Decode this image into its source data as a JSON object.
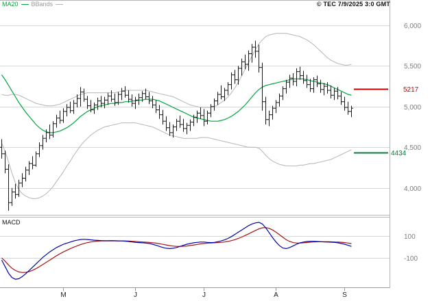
{
  "header": {
    "legend": {
      "ma20_label": "MA20",
      "bbands_label": "BBands"
    },
    "copyright": "© TEC 7/9/2025 3:0 GMT"
  },
  "colors": {
    "background": "#ffffff",
    "grid": "#d6d6d6",
    "frame": "#b5b5b5",
    "axis_line": "#999999",
    "bar": "#151515",
    "ma20": "#00a53c",
    "bbands": "#b4b4b4",
    "macd_line": "#0000b0",
    "macd_signal": "#aa1111",
    "tick_label": "#7d7d7d",
    "month_label": "#1a1a1a",
    "level_resistance": "#c00000",
    "level_support": "#008040"
  },
  "chart_data": {
    "type": "ohlc-bar",
    "title": "",
    "panels": [
      "price",
      "macd"
    ],
    "price_axis": {
      "ylim": [
        3670,
        6310
      ],
      "ticks": [
        {
          "value": 6000,
          "label": "6,000"
        },
        {
          "value": 5500,
          "label": "5,500"
        },
        {
          "value": 5000,
          "label": "5,000"
        },
        {
          "value": 4500,
          "label": "4,500"
        },
        {
          "value": 4000,
          "label": "4,000"
        }
      ]
    },
    "levels": [
      {
        "value": 5217,
        "label": "5217",
        "color": "#c00000",
        "role": "resistance"
      },
      {
        "value": 4434,
        "label": "4434",
        "color": "#008040",
        "role": "support"
      }
    ],
    "x_axis": {
      "months": [
        {
          "label": "M",
          "index": 18
        },
        {
          "label": "J",
          "index": 39
        },
        {
          "label": "J",
          "index": 59
        },
        {
          "label": "A",
          "index": 80
        },
        {
          "label": "S",
          "index": 100
        }
      ]
    },
    "series": {
      "ohlc": [
        [
          4500,
          4600,
          4360,
          4420
        ],
        [
          4420,
          4460,
          4180,
          4230
        ],
        [
          4230,
          4290,
          3720,
          3820
        ],
        [
          3820,
          4000,
          3780,
          3950
        ],
        [
          3950,
          4050,
          3870,
          3920
        ],
        [
          3920,
          4100,
          3890,
          4060
        ],
        [
          4060,
          4180,
          4010,
          4120
        ],
        [
          4120,
          4260,
          4080,
          4220
        ],
        [
          4220,
          4330,
          4160,
          4300
        ],
        [
          4300,
          4390,
          4230,
          4280
        ],
        [
          4280,
          4450,
          4260,
          4420
        ],
        [
          4420,
          4560,
          4380,
          4520
        ],
        [
          4520,
          4650,
          4470,
          4610
        ],
        [
          4610,
          4720,
          4560,
          4680
        ],
        [
          4680,
          4780,
          4600,
          4650
        ],
        [
          4650,
          4820,
          4620,
          4790
        ],
        [
          4790,
          4900,
          4740,
          4860
        ],
        [
          4860,
          4950,
          4790,
          4830
        ],
        [
          4830,
          4980,
          4800,
          4940
        ],
        [
          4940,
          5030,
          4880,
          4990
        ],
        [
          4990,
          5060,
          4920,
          4950
        ],
        [
          4950,
          5080,
          4910,
          5040
        ],
        [
          5040,
          5150,
          4990,
          5100
        ],
        [
          5100,
          5240,
          5000,
          5180
        ],
        [
          5180,
          5220,
          5060,
          5090
        ],
        [
          5090,
          5130,
          4970,
          5010
        ],
        [
          5010,
          5080,
          4930,
          4960
        ],
        [
          4960,
          5050,
          4910,
          5020
        ],
        [
          5020,
          5110,
          4960,
          5070
        ],
        [
          5070,
          5130,
          4990,
          5040
        ],
        [
          5040,
          5120,
          4980,
          5080
        ],
        [
          5080,
          5170,
          5020,
          5130
        ],
        [
          5130,
          5200,
          5060,
          5090
        ],
        [
          5090,
          5160,
          5010,
          5050
        ],
        [
          5050,
          5180,
          5020,
          5150
        ],
        [
          5150,
          5230,
          5080,
          5190
        ],
        [
          5190,
          5250,
          5110,
          5140
        ],
        [
          5140,
          5200,
          5050,
          5090
        ],
        [
          5090,
          5150,
          5000,
          5040
        ],
        [
          5040,
          5120,
          4970,
          5080
        ],
        [
          5080,
          5160,
          5020,
          5110
        ],
        [
          5110,
          5190,
          5060,
          5160
        ],
        [
          5160,
          5220,
          5090,
          5120
        ],
        [
          5120,
          5180,
          5030,
          5070
        ],
        [
          5070,
          5130,
          4980,
          5020
        ],
        [
          5020,
          5080,
          4920,
          4960
        ],
        [
          4960,
          5020,
          4850,
          4900
        ],
        [
          4900,
          4960,
          4780,
          4820
        ],
        [
          4820,
          4880,
          4700,
          4740
        ],
        [
          4740,
          4810,
          4640,
          4680
        ],
        [
          4680,
          4780,
          4620,
          4750
        ],
        [
          4750,
          4850,
          4700,
          4820
        ],
        [
          4820,
          4890,
          4740,
          4780
        ],
        [
          4780,
          4850,
          4690,
          4730
        ],
        [
          4730,
          4800,
          4660,
          4770
        ],
        [
          4770,
          4840,
          4700,
          4810
        ],
        [
          4810,
          4900,
          4760,
          4870
        ],
        [
          4870,
          4950,
          4800,
          4920
        ],
        [
          4920,
          4990,
          4850,
          4890
        ],
        [
          4890,
          4970,
          4760,
          4820
        ],
        [
          4820,
          4950,
          4780,
          4920
        ],
        [
          4920,
          5030,
          4870,
          5000
        ],
        [
          5000,
          5100,
          4950,
          5070
        ],
        [
          5070,
          5180,
          5020,
          5150
        ],
        [
          5150,
          5260,
          5090,
          5120
        ],
        [
          5120,
          5230,
          5070,
          5200
        ],
        [
          5200,
          5300,
          5140,
          5270
        ],
        [
          5270,
          5420,
          5210,
          5390
        ],
        [
          5390,
          5450,
          5280,
          5330
        ],
        [
          5330,
          5500,
          5270,
          5470
        ],
        [
          5470,
          5590,
          5380,
          5550
        ],
        [
          5550,
          5640,
          5460,
          5520
        ],
        [
          5520,
          5690,
          5440,
          5650
        ],
        [
          5650,
          5770,
          5540,
          5730
        ],
        [
          5730,
          5810,
          5600,
          5680
        ],
        [
          5680,
          5760,
          5420,
          5480
        ],
        [
          5480,
          5540,
          4950,
          5060
        ],
        [
          5060,
          5120,
          4780,
          4840
        ],
        [
          4840,
          4950,
          4760,
          4900
        ],
        [
          4900,
          5010,
          4840,
          4980
        ],
        [
          4980,
          5080,
          4920,
          5050
        ],
        [
          5050,
          5160,
          5000,
          5130
        ],
        [
          5130,
          5250,
          5080,
          5220
        ],
        [
          5220,
          5330,
          5160,
          5300
        ],
        [
          5300,
          5390,
          5230,
          5350
        ],
        [
          5350,
          5410,
          5260,
          5310
        ],
        [
          5310,
          5470,
          5250,
          5430
        ],
        [
          5430,
          5490,
          5330,
          5380
        ],
        [
          5380,
          5440,
          5280,
          5320
        ],
        [
          5320,
          5390,
          5230,
          5270
        ],
        [
          5270,
          5340,
          5180,
          5220
        ],
        [
          5220,
          5360,
          5170,
          5330
        ],
        [
          5330,
          5380,
          5240,
          5280
        ],
        [
          5280,
          5330,
          5170,
          5210
        ],
        [
          5210,
          5290,
          5140,
          5250
        ],
        [
          5250,
          5300,
          5160,
          5200
        ],
        [
          5200,
          5260,
          5100,
          5140
        ],
        [
          5140,
          5230,
          5080,
          5190
        ],
        [
          5190,
          5240,
          5090,
          5130
        ],
        [
          5130,
          5180,
          5020,
          5060
        ],
        [
          5060,
          5120,
          4950,
          4990
        ],
        [
          4990,
          5060,
          4900,
          4940
        ],
        [
          4940,
          5010,
          4870,
          4980
        ]
      ],
      "ma20": [
        5390,
        5330,
        5260,
        5190,
        5120,
        5050,
        4990,
        4930,
        4880,
        4830,
        4780,
        4740,
        4710,
        4690,
        4680,
        4680,
        4690,
        4700,
        4720,
        4740,
        4770,
        4800,
        4840,
        4880,
        4910,
        4940,
        4960,
        4980,
        5000,
        5010,
        5020,
        5030,
        5040,
        5040,
        5050,
        5050,
        5060,
        5060,
        5070,
        5070,
        5080,
        5080,
        5090,
        5090,
        5090,
        5080,
        5070,
        5050,
        5030,
        5010,
        4990,
        4970,
        4950,
        4930,
        4910,
        4890,
        4870,
        4860,
        4850,
        4840,
        4830,
        4820,
        4820,
        4820,
        4830,
        4840,
        4860,
        4880,
        4910,
        4940,
        4980,
        5020,
        5070,
        5120,
        5170,
        5210,
        5240,
        5260,
        5270,
        5280,
        5290,
        5300,
        5310,
        5320,
        5330,
        5340,
        5340,
        5340,
        5340,
        5330,
        5320,
        5310,
        5300,
        5290,
        5280,
        5270,
        5250,
        5230,
        5210,
        5190,
        5170,
        5150,
        5140
      ],
      "bb_upper": [
        5150,
        5140,
        5140,
        5150,
        5150,
        5140,
        5120,
        5100,
        5080,
        5060,
        5040,
        5030,
        5020,
        5010,
        5010,
        5010,
        5020,
        5030,
        5050,
        5070,
        5090,
        5110,
        5130,
        5150,
        5160,
        5170,
        5170,
        5170,
        5170,
        5170,
        5170,
        5170,
        5170,
        5170,
        5180,
        5190,
        5200,
        5200,
        5200,
        5200,
        5200,
        5200,
        5200,
        5190,
        5180,
        5170,
        5160,
        5150,
        5140,
        5130,
        5120,
        5100,
        5080,
        5060,
        5040,
        5020,
        5010,
        5000,
        4990,
        4990,
        4990,
        4990,
        5000,
        5020,
        5050,
        5080,
        5120,
        5170,
        5230,
        5300,
        5380,
        5460,
        5540,
        5620,
        5700,
        5770,
        5820,
        5860,
        5880,
        5890,
        5900,
        5900,
        5900,
        5900,
        5890,
        5880,
        5870,
        5860,
        5840,
        5820,
        5790,
        5760,
        5720,
        5680,
        5640,
        5600,
        5570,
        5550,
        5530,
        5520,
        5510,
        5510,
        5520
      ],
      "bb_lower": [
        4550,
        4450,
        4320,
        4180,
        4060,
        3980,
        3930,
        3900,
        3880,
        3870,
        3870,
        3880,
        3900,
        3930,
        3970,
        4020,
        4080,
        4140,
        4200,
        4270,
        4330,
        4400,
        4460,
        4520,
        4570,
        4610,
        4650,
        4680,
        4710,
        4730,
        4750,
        4760,
        4770,
        4780,
        4790,
        4800,
        4800,
        4800,
        4800,
        4800,
        4790,
        4780,
        4770,
        4760,
        4750,
        4730,
        4710,
        4690,
        4670,
        4650,
        4640,
        4630,
        4620,
        4610,
        4610,
        4610,
        4610,
        4610,
        4620,
        4620,
        4620,
        4610,
        4600,
        4590,
        4580,
        4570,
        4560,
        4550,
        4540,
        4530,
        4520,
        4510,
        4500,
        4500,
        4500,
        4490,
        4450,
        4400,
        4360,
        4330,
        4310,
        4290,
        4280,
        4270,
        4270,
        4270,
        4270,
        4280,
        4280,
        4290,
        4300,
        4300,
        4310,
        4320,
        4330,
        4340,
        4350,
        4370,
        4390,
        4410,
        4430,
        4450,
        4470
      ]
    },
    "macd_panel": {
      "label": "MACD",
      "ylim": [
        -369,
        269
      ],
      "ticks": [
        {
          "value": 100,
          "label": "100"
        },
        {
          "value": -100,
          "label": "-100"
        }
      ],
      "macd": [
        -120,
        -180,
        -240,
        -280,
        -295,
        -290,
        -270,
        -245,
        -215,
        -185,
        -155,
        -125,
        -95,
        -70,
        -45,
        -25,
        -5,
        10,
        25,
        35,
        45,
        55,
        62,
        68,
        70,
        68,
        65,
        62,
        60,
        58,
        57,
        57,
        58,
        57,
        56,
        55,
        53,
        50,
        46,
        42,
        40,
        38,
        36,
        32,
        25,
        15,
        5,
        -5,
        -12,
        -15,
        -12,
        -5,
        5,
        15,
        25,
        32,
        38,
        42,
        45,
        45,
        42,
        40,
        42,
        48,
        55,
        65,
        78,
        95,
        115,
        135,
        155,
        175,
        195,
        210,
        220,
        225,
        210,
        175,
        130,
        85,
        45,
        12,
        -10,
        -15,
        -5,
        10,
        25,
        38,
        45,
        50,
        52,
        52,
        50,
        48,
        46,
        45,
        44,
        42,
        38,
        32,
        25,
        15,
        5
      ],
      "signal": [
        -100,
        -130,
        -165,
        -195,
        -215,
        -228,
        -233,
        -232,
        -225,
        -213,
        -198,
        -180,
        -160,
        -140,
        -120,
        -100,
        -80,
        -62,
        -45,
        -30,
        -15,
        -2,
        10,
        22,
        32,
        40,
        46,
        50,
        53,
        55,
        56,
        56,
        56,
        56,
        56,
        56,
        55,
        54,
        52,
        50,
        48,
        46,
        44,
        42,
        39,
        35,
        30,
        24,
        18,
        12,
        8,
        5,
        5,
        6,
        9,
        13,
        18,
        23,
        28,
        32,
        35,
        37,
        38,
        40,
        42,
        46,
        51,
        58,
        67,
        78,
        91,
        105,
        120,
        136,
        151,
        165,
        175,
        177,
        170,
        155,
        135,
        112,
        88,
        66,
        50,
        40,
        36,
        36,
        38,
        41,
        44,
        46,
        47,
        48,
        48,
        48,
        47,
        46,
        45,
        43,
        40,
        36,
        31
      ]
    }
  }
}
